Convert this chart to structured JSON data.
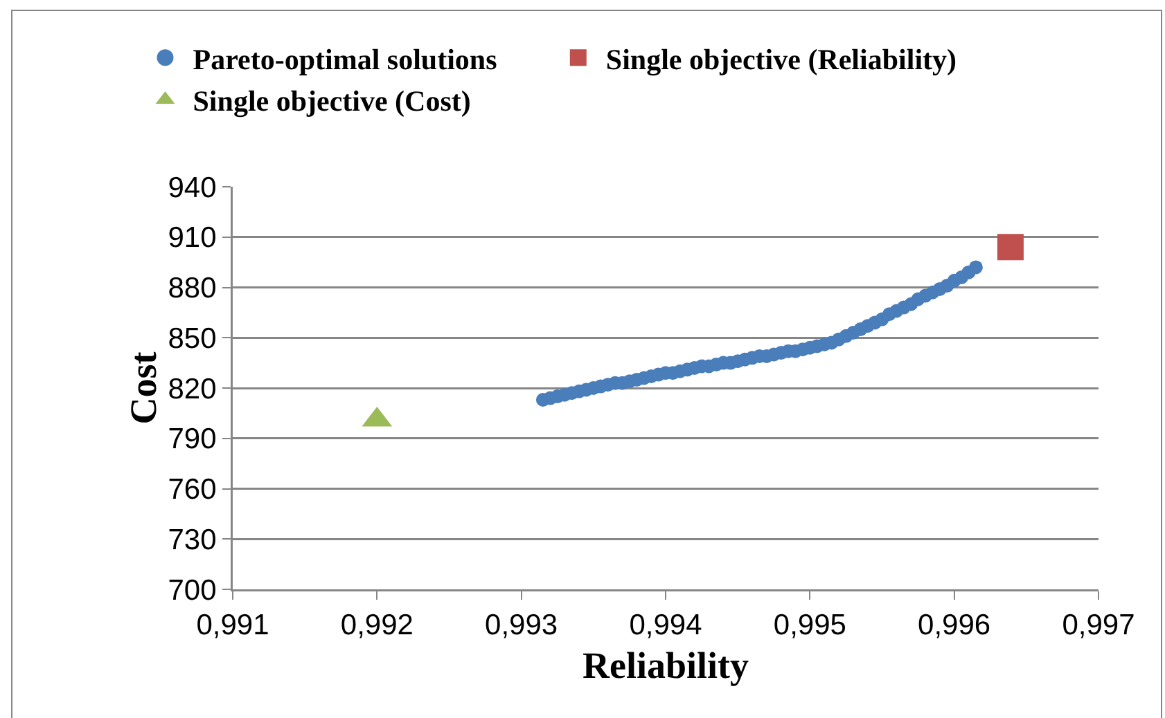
{
  "chart_data": {
    "type": "scatter",
    "xlabel": "Reliability",
    "ylabel": "Cost",
    "xlim": [
      0.991,
      0.997
    ],
    "xticks": [
      {
        "value": 0.991,
        "label": "0,991"
      },
      {
        "value": 0.992,
        "label": "0,992"
      },
      {
        "value": 0.993,
        "label": "0,993"
      },
      {
        "value": 0.994,
        "label": "0,994"
      },
      {
        "value": 0.995,
        "label": "0,995"
      },
      {
        "value": 0.996,
        "label": "0,996"
      },
      {
        "value": 0.997,
        "label": "0,997"
      }
    ],
    "ylim": [
      700,
      940
    ],
    "yticks": [
      700,
      730,
      760,
      790,
      820,
      850,
      880,
      910,
      940
    ],
    "grid": "y",
    "legend": "top",
    "series": [
      {
        "name": "Pareto-optimal solutions",
        "color": "#4a7ebb",
        "marker": "circle",
        "x": [
          0.99315,
          0.9932,
          0.99325,
          0.9933,
          0.99335,
          0.9934,
          0.99345,
          0.9935,
          0.99355,
          0.9936,
          0.99365,
          0.9937,
          0.99375,
          0.9938,
          0.99385,
          0.9939,
          0.99395,
          0.994,
          0.99405,
          0.9941,
          0.99415,
          0.9942,
          0.99425,
          0.9943,
          0.99435,
          0.9944,
          0.99445,
          0.9945,
          0.99455,
          0.9946,
          0.99465,
          0.9947,
          0.99475,
          0.9948,
          0.99485,
          0.9949,
          0.99495,
          0.995,
          0.99505,
          0.9951,
          0.99515,
          0.9952,
          0.99525,
          0.9953,
          0.99535,
          0.9954,
          0.99545,
          0.9955,
          0.99555,
          0.9956,
          0.99565,
          0.9957,
          0.99575,
          0.9958,
          0.99585,
          0.9959,
          0.99595,
          0.996,
          0.99605,
          0.9961,
          0.99615
        ],
        "values": [
          813,
          814,
          815,
          816,
          817,
          818,
          819,
          820,
          821,
          822,
          823,
          823,
          824,
          825,
          826,
          827,
          828,
          829,
          829,
          830,
          831,
          832,
          833,
          833,
          834,
          835,
          835,
          836,
          837,
          838,
          839,
          839,
          840,
          841,
          842,
          842,
          843,
          844,
          845,
          846,
          847,
          849,
          851,
          853,
          855,
          857,
          859,
          861,
          864,
          866,
          868,
          870,
          873,
          875,
          877,
          879,
          881,
          884,
          886,
          889,
          892
        ]
      },
      {
        "name": "Single objective (Reliability)",
        "color": "#c0504d",
        "marker": "square",
        "x": [
          0.99639
        ],
        "values": [
          904
        ]
      },
      {
        "name": "Single objective (Cost)",
        "color": "#9bbb59",
        "marker": "triangle",
        "x": [
          0.992
        ],
        "values": [
          801
        ]
      }
    ]
  }
}
